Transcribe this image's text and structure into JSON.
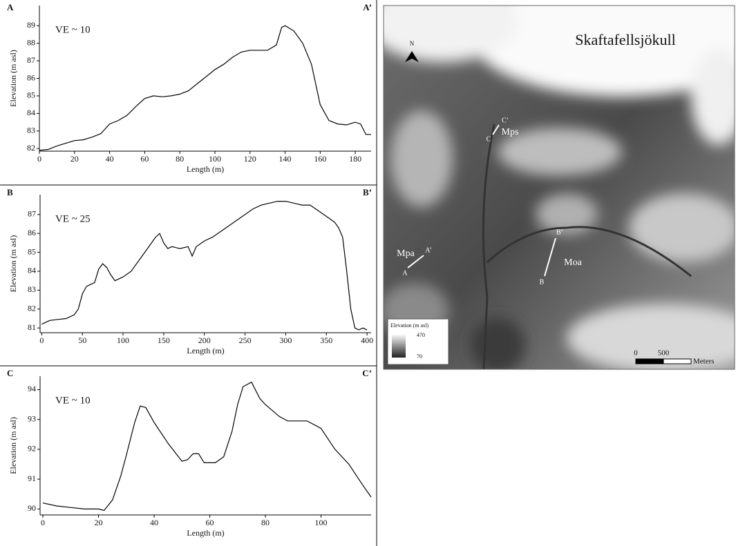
{
  "chart_data": [
    {
      "type": "line",
      "panel_label": "A",
      "end_label": "A’",
      "annotation": "VE ~ 10",
      "x_label": "Length (m)",
      "y_label": "Elevation (m asl)",
      "color": "#000000",
      "x": [
        0,
        5,
        10,
        15,
        20,
        25,
        30,
        35,
        40,
        45,
        50,
        55,
        60,
        65,
        70,
        75,
        80,
        85,
        90,
        95,
        100,
        105,
        110,
        115,
        120,
        125,
        130,
        135,
        138,
        140,
        145,
        150,
        155,
        160,
        165,
        170,
        175,
        180,
        183,
        186,
        189
      ],
      "values": [
        81.9,
        81.95,
        82.15,
        82.3,
        82.45,
        82.5,
        82.65,
        82.85,
        83.4,
        83.6,
        83.9,
        84.4,
        84.85,
        85.0,
        84.95,
        85.0,
        85.1,
        85.3,
        85.7,
        86.1,
        86.5,
        86.8,
        87.2,
        87.5,
        87.6,
        87.6,
        87.6,
        87.9,
        88.9,
        89.0,
        88.7,
        88.0,
        86.8,
        84.5,
        83.6,
        83.4,
        83.35,
        83.5,
        83.4,
        82.8,
        82.8
      ],
      "xlim": [
        0,
        189
      ],
      "xticks": [
        0,
        20,
        40,
        60,
        80,
        100,
        120,
        140,
        160,
        180
      ],
      "ylim": [
        81.85,
        90.15
      ],
      "yticks": [
        82,
        83,
        84,
        85,
        86,
        87,
        88,
        89
      ]
    },
    {
      "type": "line",
      "panel_label": "B",
      "end_label": "B’",
      "annotation": "VE ~ 25",
      "x_label": "Length (m)",
      "y_label": "Elevation (m asl)",
      "color": "#000000",
      "x": [
        0,
        5,
        10,
        20,
        30,
        40,
        45,
        50,
        55,
        60,
        65,
        70,
        75,
        80,
        85,
        90,
        100,
        110,
        120,
        130,
        140,
        145,
        150,
        155,
        160,
        170,
        180,
        185,
        190,
        200,
        210,
        220,
        230,
        240,
        250,
        260,
        270,
        280,
        290,
        300,
        310,
        320,
        330,
        340,
        350,
        360,
        365,
        370,
        375,
        380,
        385,
        390,
        395,
        400
      ],
      "values": [
        81.2,
        81.3,
        81.4,
        81.45,
        81.5,
        81.7,
        82.0,
        82.8,
        83.2,
        83.3,
        83.4,
        84.1,
        84.4,
        84.2,
        83.8,
        83.5,
        83.7,
        84.0,
        84.6,
        85.2,
        85.8,
        86.0,
        85.5,
        85.2,
        85.3,
        85.2,
        85.3,
        84.8,
        85.3,
        85.6,
        85.8,
        86.1,
        86.4,
        86.7,
        87.0,
        87.3,
        87.5,
        87.6,
        87.7,
        87.7,
        87.6,
        87.5,
        87.5,
        87.2,
        86.9,
        86.6,
        86.3,
        85.8,
        84.0,
        82.0,
        81.0,
        80.9,
        81.0,
        80.9
      ],
      "xlim": [
        -2,
        405
      ],
      "xticks": [
        0,
        50,
        100,
        150,
        200,
        250,
        300,
        350,
        400
      ],
      "ylim": [
        80.75,
        88.05
      ],
      "yticks": [
        81,
        82,
        83,
        84,
        85,
        86,
        87
      ]
    },
    {
      "type": "line",
      "panel_label": "C",
      "end_label": "C’",
      "annotation": "VE ~ 10",
      "x_label": "Length (m)",
      "y_label": "Elevation (m asl)",
      "color": "#000000",
      "x": [
        0,
        5,
        10,
        15,
        20,
        22,
        25,
        28,
        30,
        33,
        35,
        37,
        40,
        45,
        50,
        52,
        54,
        56,
        58,
        62,
        65,
        68,
        70,
        72,
        75,
        78,
        80,
        85,
        88,
        95,
        100,
        105,
        110,
        115,
        118
      ],
      "values": [
        90.2,
        90.1,
        90.05,
        90.0,
        90.0,
        89.95,
        90.3,
        91.1,
        91.8,
        92.9,
        93.45,
        93.4,
        92.9,
        92.2,
        91.6,
        91.65,
        91.85,
        91.85,
        91.55,
        91.55,
        91.75,
        92.6,
        93.5,
        94.1,
        94.25,
        93.7,
        93.5,
        93.1,
        92.95,
        92.95,
        92.7,
        92.0,
        91.5,
        90.8,
        90.4
      ],
      "xlim": [
        -1,
        118
      ],
      "xticks": [
        0,
        20,
        40,
        60,
        80,
        100
      ],
      "ylim": [
        89.8,
        94.45
      ],
      "yticks": [
        90,
        91,
        92,
        93,
        94
      ]
    }
  ],
  "map": {
    "title": "Skaftafellsjökull",
    "north": "N",
    "profiles": [
      {
        "start": "A",
        "end": "A’",
        "landform": "Mpa"
      },
      {
        "start": "B",
        "end": "B’",
        "landform": "Moa"
      },
      {
        "start": "C",
        "end": "C’",
        "landform": "Mps"
      }
    ],
    "legend": {
      "title": "Elevation (m asl)",
      "max": "470",
      "min": "70"
    },
    "scale": {
      "start": "0",
      "mark": "500",
      "unit": "Meters"
    }
  }
}
